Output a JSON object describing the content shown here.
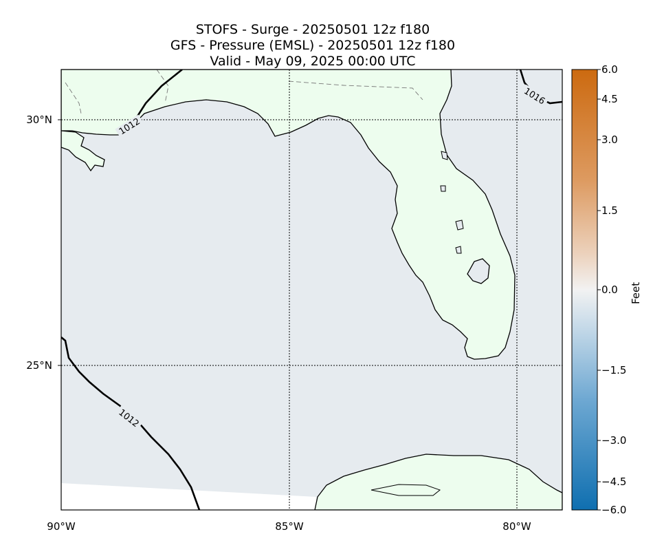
{
  "title": {
    "line1": "STOFS - Surge - 20250501 12z f180",
    "line2": "GFS -  Pressure (EMSL) - 20250501 12z f180",
    "line3": "Valid - May 09, 2025 00:00 UTC"
  },
  "axes": {
    "lat_labels": [
      "30°N",
      "25°N"
    ],
    "lon_labels": [
      "90°W",
      "85°W",
      "80°W"
    ]
  },
  "isobars": {
    "labels": [
      "1012",
      "1012",
      "1016"
    ]
  },
  "colorbar": {
    "label": "Feet",
    "ticks": [
      "6.0",
      "4.5",
      "3.0",
      "1.5",
      "0.0",
      "−1.5",
      "−3.0",
      "−4.5",
      "−6.0"
    ],
    "range": [
      -6.0,
      6.0
    ]
  },
  "colors": {
    "land": "#edfdee",
    "water": "#e6ebef",
    "colormap_top": "#cc6a10",
    "colormap_mid": "#f2f2f2",
    "colormap_bottom": "#0f6fb0"
  }
}
